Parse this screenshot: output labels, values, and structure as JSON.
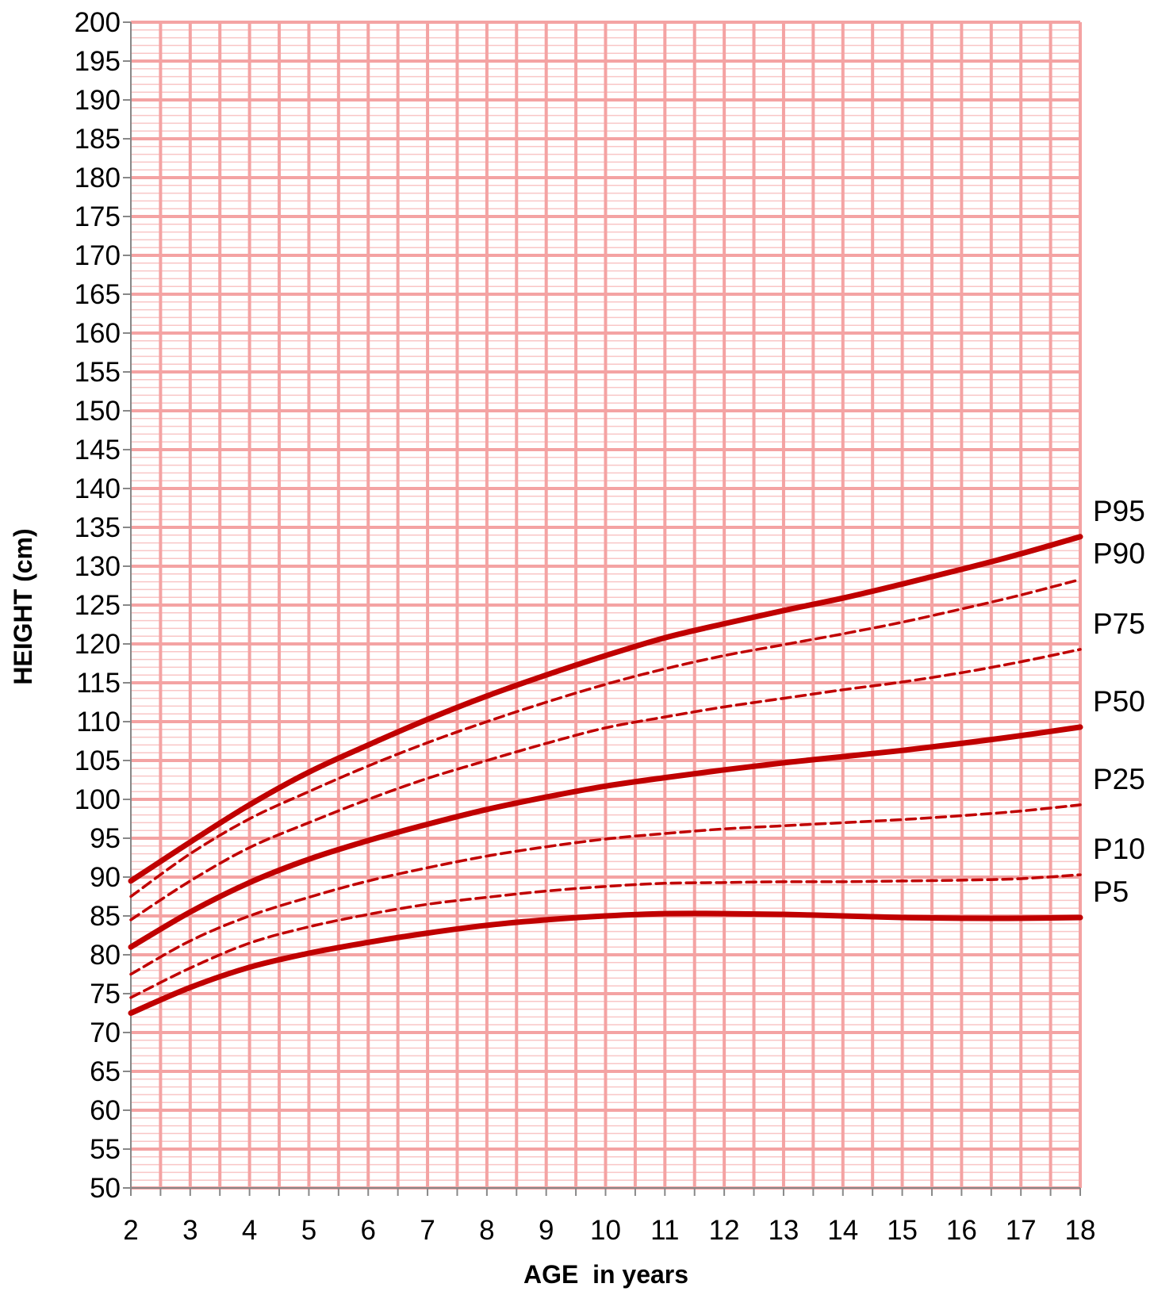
{
  "chart_data": {
    "type": "line",
    "title": "",
    "xlabel": "AGE  in years",
    "ylabel": "HEIGHT (cm)",
    "xlim": [
      2,
      18
    ],
    "ylim": [
      50,
      200
    ],
    "x_ticks": [
      2,
      3,
      4,
      5,
      6,
      7,
      8,
      9,
      10,
      11,
      12,
      13,
      14,
      15,
      16,
      17,
      18
    ],
    "y_ticks": [
      50,
      55,
      60,
      65,
      70,
      75,
      80,
      85,
      90,
      95,
      100,
      105,
      110,
      115,
      120,
      125,
      130,
      135,
      140,
      145,
      150,
      155,
      160,
      165,
      170,
      175,
      180,
      185,
      190,
      195,
      200
    ],
    "grid": true,
    "legend": "end-of-line labels (right)",
    "colors": {
      "grid_major": "#f4a3a3",
      "grid_minor": "#f9c6c6",
      "line": "#c00000",
      "axis": "#888888"
    },
    "x": [
      2,
      3,
      4,
      5,
      6,
      7,
      8,
      9,
      10,
      11,
      12,
      13,
      14,
      15,
      16,
      17,
      18
    ],
    "series": [
      {
        "name": "P95",
        "style": "solid",
        "values": [
          89.5,
          94.5,
          99.3,
          103.5,
          107.0,
          110.3,
          113.3,
          116.0,
          118.5,
          120.8,
          122.6,
          124.3,
          125.9,
          127.7,
          129.6,
          131.6,
          133.8
        ]
      },
      {
        "name": "P90",
        "style": "dashed",
        "values": [
          87.5,
          93.0,
          97.5,
          101.0,
          104.3,
          107.3,
          110.0,
          112.5,
          114.8,
          116.8,
          118.5,
          119.9,
          121.3,
          122.8,
          124.5,
          126.3,
          128.3
        ]
      },
      {
        "name": "P75",
        "style": "dashed",
        "values": [
          84.5,
          89.5,
          93.8,
          97.0,
          100.0,
          102.7,
          105.0,
          107.2,
          109.2,
          110.6,
          111.9,
          113.0,
          114.1,
          115.1,
          116.3,
          117.7,
          119.3
        ]
      },
      {
        "name": "P50",
        "style": "solid",
        "values": [
          81.0,
          85.5,
          89.3,
          92.3,
          94.7,
          96.8,
          98.7,
          100.3,
          101.7,
          102.8,
          103.8,
          104.7,
          105.5,
          106.3,
          107.2,
          108.2,
          109.3
        ]
      },
      {
        "name": "P25",
        "style": "dashed",
        "values": [
          77.5,
          81.8,
          85.0,
          87.4,
          89.5,
          91.2,
          92.7,
          93.9,
          94.9,
          95.6,
          96.2,
          96.6,
          97.0,
          97.4,
          97.9,
          98.5,
          99.3
        ]
      },
      {
        "name": "P10",
        "style": "dashed",
        "values": [
          74.5,
          78.3,
          81.5,
          83.6,
          85.2,
          86.5,
          87.4,
          88.2,
          88.8,
          89.2,
          89.3,
          89.4,
          89.4,
          89.5,
          89.6,
          89.8,
          90.3
        ]
      },
      {
        "name": "P5",
        "style": "solid",
        "values": [
          72.5,
          75.8,
          78.4,
          80.2,
          81.6,
          82.8,
          83.8,
          84.5,
          85.0,
          85.3,
          85.3,
          85.2,
          85.0,
          84.8,
          84.7,
          84.7,
          84.8
        ]
      }
    ]
  }
}
